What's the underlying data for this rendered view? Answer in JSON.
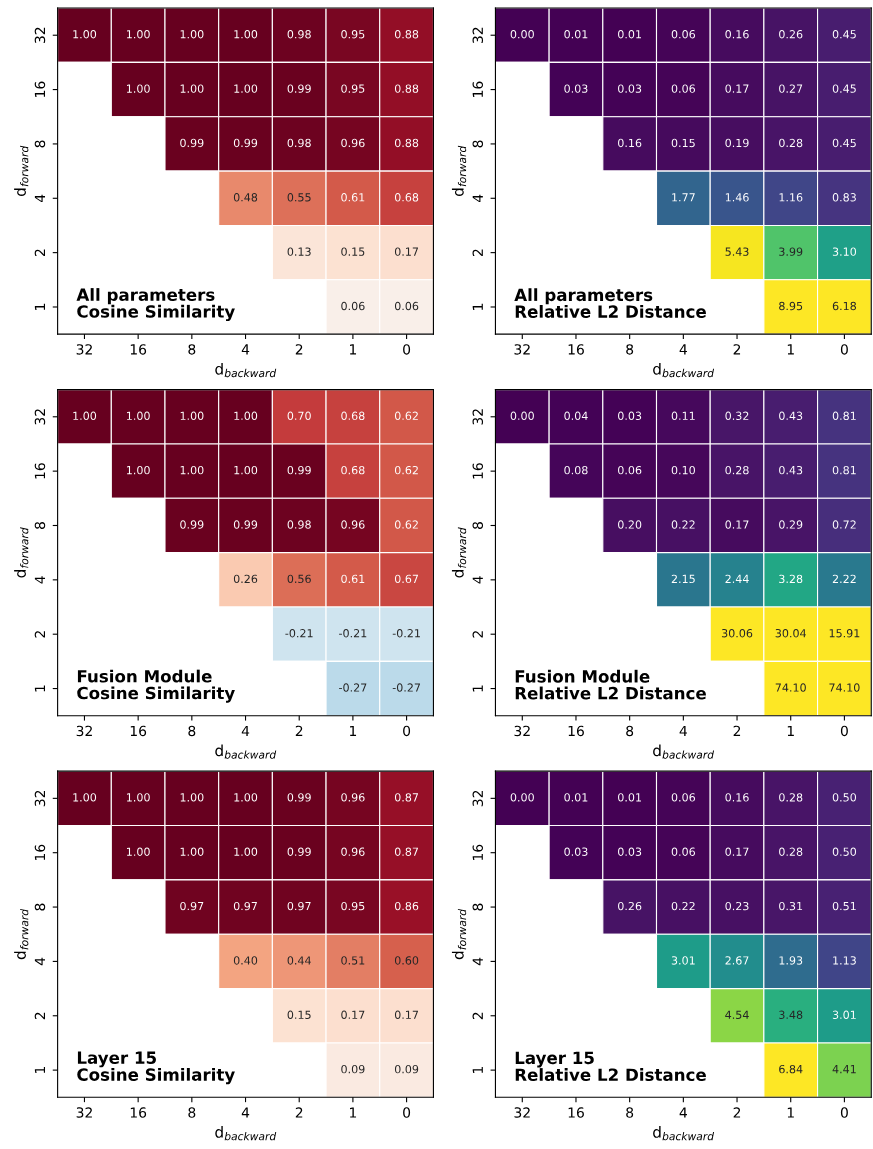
{
  "chart_data": [
    {
      "type": "heatmap",
      "title": "All parameters\nCosine Similarity",
      "xlabel": "d$_{backward}$",
      "ylabel": "d$_{forward}$",
      "categories": [
        "32",
        "16",
        "8",
        "4",
        "2",
        "1",
        "0"
      ],
      "y_categories": [
        "32",
        "16",
        "8",
        "4",
        "2",
        "1"
      ],
      "cells": [
        [
          1.0,
          1.0,
          1.0,
          1.0,
          0.98,
          0.95,
          0.88
        ],
        [
          null,
          1.0,
          1.0,
          1.0,
          0.99,
          0.95,
          0.88
        ],
        [
          null,
          null,
          0.99,
          0.99,
          0.98,
          0.96,
          0.88
        ],
        [
          null,
          null,
          null,
          0.48,
          0.55,
          0.61,
          0.68
        ],
        [
          null,
          null,
          null,
          null,
          0.13,
          0.15,
          0.17
        ],
        [
          null,
          null,
          null,
          null,
          null,
          0.06,
          0.06
        ]
      ],
      "cell_labels": [
        [
          "1.00",
          "1.00",
          "1.00",
          "1.00",
          "0.98",
          "0.95",
          "0.88"
        ],
        [
          null,
          "1.00",
          "1.00",
          "1.00",
          "0.99",
          "0.95",
          "0.88"
        ],
        [
          null,
          null,
          "0.99",
          "0.99",
          "0.98",
          "0.96",
          "0.88"
        ],
        [
          null,
          null,
          null,
          "0.48",
          "0.55",
          "0.61",
          "0.68"
        ],
        [
          null,
          null,
          null,
          null,
          "0.13",
          "0.15",
          "0.17"
        ],
        [
          null,
          null,
          null,
          null,
          null,
          "0.06",
          "0.06"
        ]
      ]
    },
    {
      "type": "heatmap",
      "title": "All parameters\nRelative L2 Distance",
      "xlabel": "d$_{backward}$",
      "ylabel": "d$_{forward}$",
      "categories": [
        "32",
        "16",
        "8",
        "4",
        "2",
        "1",
        "0"
      ],
      "y_categories": [
        "32",
        "16",
        "8",
        "4",
        "2",
        "1"
      ],
      "cells": [
        [
          0.0,
          0.01,
          0.01,
          0.06,
          0.16,
          0.26,
          0.45
        ],
        [
          null,
          0.03,
          0.03,
          0.06,
          0.17,
          0.27,
          0.45
        ],
        [
          null,
          null,
          0.16,
          0.15,
          0.19,
          0.28,
          0.45
        ],
        [
          null,
          null,
          null,
          1.77,
          1.46,
          1.16,
          0.83
        ],
        [
          null,
          null,
          null,
          null,
          5.43,
          3.99,
          3.1
        ],
        [
          null,
          null,
          null,
          null,
          null,
          8.95,
          6.18
        ]
      ],
      "cell_labels": [
        [
          "0.00",
          "0.01",
          "0.01",
          "0.06",
          "0.16",
          "0.26",
          "0.45"
        ],
        [
          null,
          "0.03",
          "0.03",
          "0.06",
          "0.17",
          "0.27",
          "0.45"
        ],
        [
          null,
          null,
          "0.16",
          "0.15",
          "0.19",
          "0.28",
          "0.45"
        ],
        [
          null,
          null,
          null,
          "1.77",
          "1.46",
          "1.16",
          "0.83"
        ],
        [
          null,
          null,
          null,
          null,
          "5.43",
          "3.99",
          "3.10"
        ],
        [
          null,
          null,
          null,
          null,
          null,
          "8.95",
          "6.18"
        ]
      ]
    },
    {
      "type": "heatmap",
      "title": "Fusion Module\nCosine Similarity",
      "xlabel": "d$_{backward}$",
      "ylabel": "d$_{forward}$",
      "categories": [
        "32",
        "16",
        "8",
        "4",
        "2",
        "1",
        "0"
      ],
      "y_categories": [
        "32",
        "16",
        "8",
        "4",
        "2",
        "1"
      ],
      "cells": [
        [
          1.0,
          1.0,
          1.0,
          1.0,
          0.7,
          0.68,
          0.62
        ],
        [
          null,
          1.0,
          1.0,
          1.0,
          0.99,
          0.68,
          0.62
        ],
        [
          null,
          null,
          0.99,
          0.99,
          0.98,
          0.96,
          0.62
        ],
        [
          null,
          null,
          null,
          0.26,
          0.56,
          0.61,
          0.67
        ],
        [
          null,
          null,
          null,
          null,
          -0.21,
          -0.21,
          -0.21
        ],
        [
          null,
          null,
          null,
          null,
          null,
          -0.27,
          -0.27
        ]
      ],
      "cell_labels": [
        [
          "1.00",
          "1.00",
          "1.00",
          "1.00",
          "0.70",
          "0.68",
          "0.62"
        ],
        [
          null,
          "1.00",
          "1.00",
          "1.00",
          "0.99",
          "0.68",
          "0.62"
        ],
        [
          null,
          null,
          "0.99",
          "0.99",
          "0.98",
          "0.96",
          "0.62"
        ],
        [
          null,
          null,
          null,
          "0.26",
          "0.56",
          "0.61",
          "0.67"
        ],
        [
          null,
          null,
          null,
          null,
          "-0.21",
          "-0.21",
          "-0.21"
        ],
        [
          null,
          null,
          null,
          null,
          null,
          "-0.27",
          "-0.27"
        ]
      ]
    },
    {
      "type": "heatmap",
      "title": "Fusion Module\nRelative L2 Distance",
      "xlabel": "d$_{backward}$",
      "ylabel": "d$_{forward}$",
      "categories": [
        "32",
        "16",
        "8",
        "4",
        "2",
        "1",
        "0"
      ],
      "y_categories": [
        "32",
        "16",
        "8",
        "4",
        "2",
        "1"
      ],
      "cells": [
        [
          0.0,
          0.04,
          0.03,
          0.11,
          0.32,
          0.43,
          0.81
        ],
        [
          null,
          0.08,
          0.06,
          0.1,
          0.28,
          0.43,
          0.81
        ],
        [
          null,
          null,
          0.2,
          0.22,
          0.17,
          0.29,
          0.72
        ],
        [
          null,
          null,
          null,
          2.15,
          2.44,
          3.28,
          2.22
        ],
        [
          null,
          null,
          null,
          null,
          30.06,
          30.04,
          15.91
        ],
        [
          null,
          null,
          null,
          null,
          null,
          74.1,
          74.1
        ]
      ],
      "cell_labels": [
        [
          "0.00",
          "0.04",
          "0.03",
          "0.11",
          "0.32",
          "0.43",
          "0.81"
        ],
        [
          null,
          "0.08",
          "0.06",
          "0.10",
          "0.28",
          "0.43",
          "0.81"
        ],
        [
          null,
          null,
          "0.20",
          "0.22",
          "0.17",
          "0.29",
          "0.72"
        ],
        [
          null,
          null,
          null,
          "2.15",
          "2.44",
          "3.28",
          "2.22"
        ],
        [
          null,
          null,
          null,
          null,
          "30.06",
          "30.04",
          "15.91"
        ],
        [
          null,
          null,
          null,
          null,
          null,
          "74.10",
          "74.10"
        ]
      ]
    },
    {
      "type": "heatmap",
      "title": "Layer 15\nCosine Similarity",
      "xlabel": "d$_{backward}$",
      "ylabel": "d$_{forward}$",
      "categories": [
        "32",
        "16",
        "8",
        "4",
        "2",
        "1",
        "0"
      ],
      "y_categories": [
        "32",
        "16",
        "8",
        "4",
        "2",
        "1"
      ],
      "cells": [
        [
          1.0,
          1.0,
          1.0,
          1.0,
          0.99,
          0.96,
          0.87
        ],
        [
          null,
          1.0,
          1.0,
          1.0,
          0.99,
          0.96,
          0.87
        ],
        [
          null,
          null,
          0.97,
          0.97,
          0.97,
          0.95,
          0.86
        ],
        [
          null,
          null,
          null,
          0.4,
          0.44,
          0.51,
          0.6
        ],
        [
          null,
          null,
          null,
          null,
          0.15,
          0.17,
          0.17
        ],
        [
          null,
          null,
          null,
          null,
          null,
          0.09,
          0.09
        ]
      ],
      "cell_labels": [
        [
          "1.00",
          "1.00",
          "1.00",
          "1.00",
          "0.99",
          "0.96",
          "0.87"
        ],
        [
          null,
          "1.00",
          "1.00",
          "1.00",
          "0.99",
          "0.96",
          "0.87"
        ],
        [
          null,
          null,
          "0.97",
          "0.97",
          "0.97",
          "0.95",
          "0.86"
        ],
        [
          null,
          null,
          null,
          "0.40",
          "0.44",
          "0.51",
          "0.60"
        ],
        [
          null,
          null,
          null,
          null,
          "0.15",
          "0.17",
          "0.17"
        ],
        [
          null,
          null,
          null,
          null,
          null,
          "0.09",
          "0.09"
        ]
      ]
    },
    {
      "type": "heatmap",
      "title": "Layer 15\nRelative L2 Distance",
      "xlabel": "d$_{backward}$",
      "ylabel": "d$_{forward}$",
      "categories": [
        "32",
        "16",
        "8",
        "4",
        "2",
        "1",
        "0"
      ],
      "y_categories": [
        "32",
        "16",
        "8",
        "4",
        "2",
        "1"
      ],
      "cells": [
        [
          0.0,
          0.01,
          0.01,
          0.06,
          0.16,
          0.28,
          0.5
        ],
        [
          null,
          0.03,
          0.03,
          0.06,
          0.17,
          0.28,
          0.5
        ],
        [
          null,
          null,
          0.26,
          0.22,
          0.23,
          0.31,
          0.51
        ],
        [
          null,
          null,
          null,
          3.01,
          2.67,
          1.93,
          1.13
        ],
        [
          null,
          null,
          null,
          null,
          4.54,
          3.48,
          3.01
        ],
        [
          null,
          null,
          null,
          null,
          null,
          6.84,
          4.41
        ]
      ],
      "cell_labels": [
        [
          "0.00",
          "0.01",
          "0.01",
          "0.06",
          "0.16",
          "0.28",
          "0.50"
        ],
        [
          null,
          "0.03",
          "0.03",
          "0.06",
          "0.17",
          "0.28",
          "0.50"
        ],
        [
          null,
          null,
          "0.26",
          "0.22",
          "0.23",
          "0.31",
          "0.51"
        ],
        [
          null,
          null,
          null,
          "3.01",
          "2.67",
          "1.93",
          "1.13"
        ],
        [
          null,
          null,
          null,
          null,
          "4.54",
          "3.48",
          "3.01"
        ],
        [
          null,
          null,
          null,
          null,
          null,
          "6.84",
          "4.41"
        ]
      ]
    }
  ]
}
